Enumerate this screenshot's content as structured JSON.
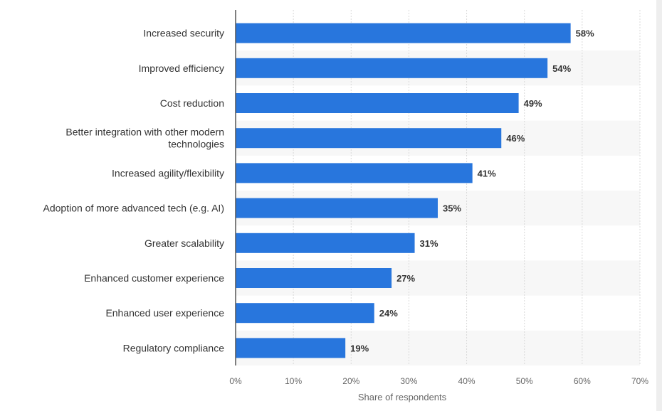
{
  "chart_data": {
    "type": "bar",
    "orientation": "horizontal",
    "categories": [
      "Increased security",
      "Improved efficiency",
      "Cost reduction",
      "Better integration with other modern technologies",
      "Increased agility/flexibility",
      "Adoption of more advanced tech (e.g. AI)",
      "Greater scalability",
      "Enhanced customer experience",
      "Enhanced user experience",
      "Regulatory compliance"
    ],
    "category_lines": [
      [
        "Increased security"
      ],
      [
        "Improved efficiency"
      ],
      [
        "Cost reduction"
      ],
      [
        "Better integration with other modern",
        "technologies"
      ],
      [
        "Increased agility/flexibility"
      ],
      [
        "Adoption of more advanced tech (e.g. AI)"
      ],
      [
        "Greater scalability"
      ],
      [
        "Enhanced customer experience"
      ],
      [
        "Enhanced user experience"
      ],
      [
        "Regulatory compliance"
      ]
    ],
    "values": [
      58,
      54,
      49,
      46,
      41,
      35,
      31,
      27,
      24,
      19
    ],
    "value_labels": [
      "58%",
      "54%",
      "49%",
      "46%",
      "41%",
      "35%",
      "31%",
      "27%",
      "24%",
      "19%"
    ],
    "xlim": [
      0,
      70
    ],
    "x_ticks": [
      0,
      10,
      20,
      30,
      40,
      50,
      60,
      70
    ],
    "x_tick_labels": [
      "0%",
      "10%",
      "20%",
      "30%",
      "40%",
      "50%",
      "60%",
      "70%"
    ],
    "xlabel": "Share of respondents",
    "ylabel": "",
    "title": "",
    "grid": true,
    "bar_color": "#2876dd",
    "band_color": "#f7f7f7",
    "grid_color": "#d9d9d9"
  }
}
